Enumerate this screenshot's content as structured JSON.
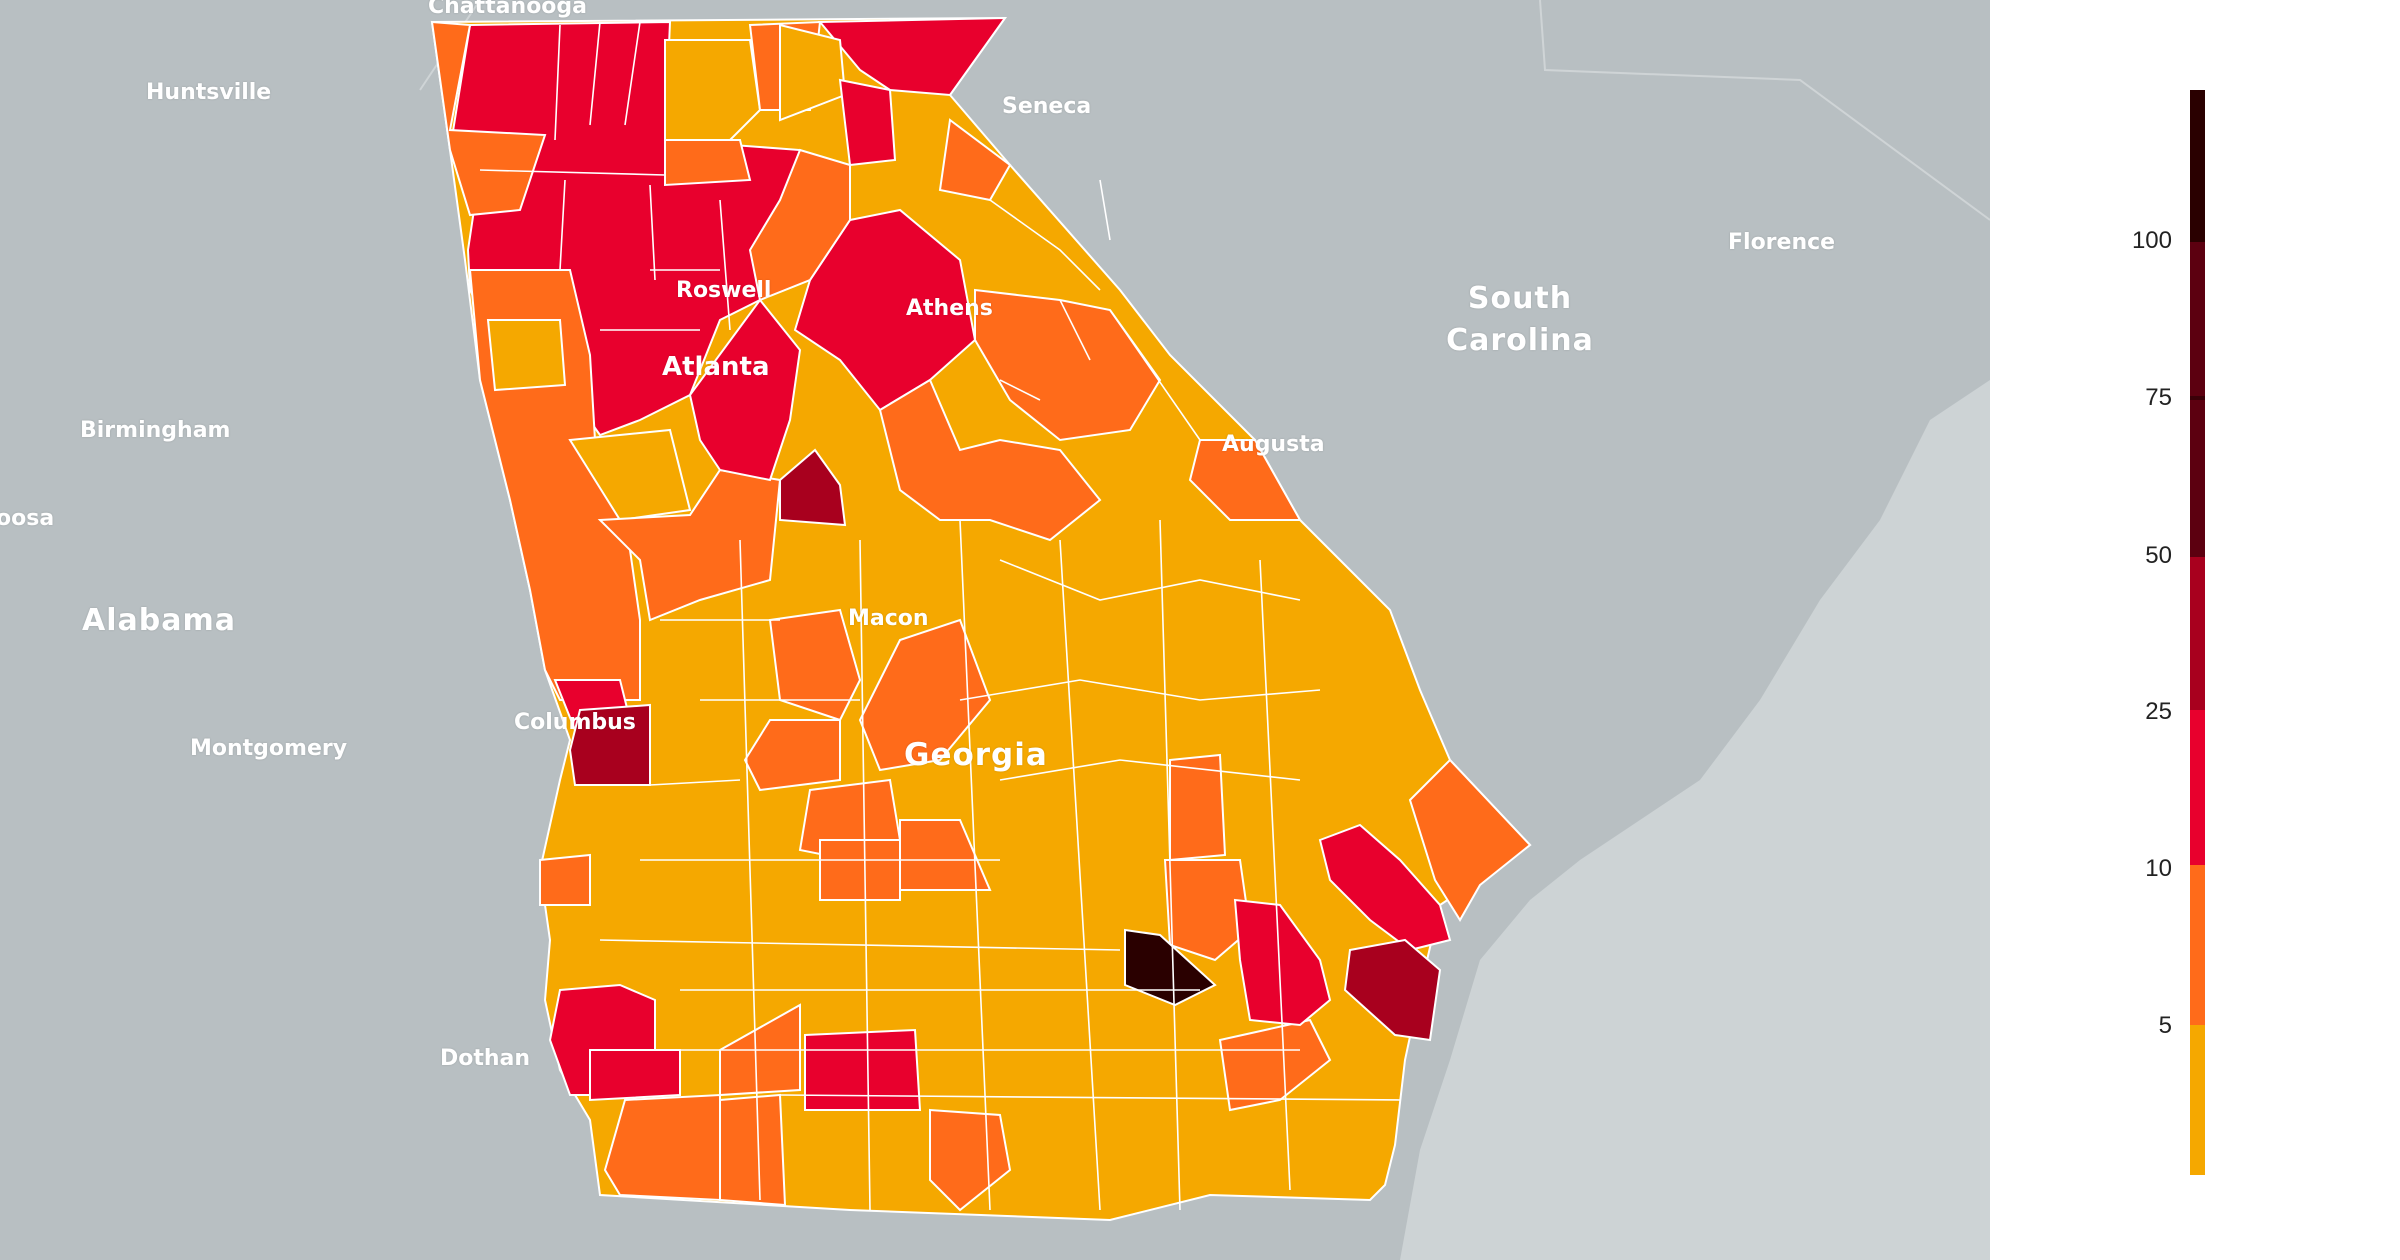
{
  "map": {
    "places": {
      "chattanooga": "Chattanooga",
      "huntsville": "Huntsville",
      "seneca": "Seneca",
      "florence": "Florence",
      "roswell": "Roswell",
      "athens": "Athens",
      "atlanta": "Atlanta",
      "augusta": "Augusta",
      "birmingham": "Birmingham",
      "oosa": "oosa",
      "macon": "Macon",
      "columbus": "Columbus",
      "montgomery": "Montgomery",
      "dothan": "Dothan"
    },
    "regions": {
      "south_carolina_1": "South",
      "south_carolina_2": "Carolina",
      "alabama": "Alabama",
      "georgia": "Georgia"
    },
    "colors": {
      "land": "#b8bfc2",
      "water": "#cdd3d5",
      "low": "#f5a800",
      "mid": "#ff6b1a",
      "high": "#e8002d",
      "very_high": "#a8001e",
      "extreme": "#2a0000"
    }
  },
  "legend": {
    "ticks": [
      "100",
      "75",
      "50",
      "25",
      "10",
      "5"
    ],
    "segments": [
      {
        "range": "75-100+",
        "color": "#2a0000"
      },
      {
        "range": "50-75",
        "color": "#5c0010"
      },
      {
        "range": "25-50",
        "color": "#a8001e"
      },
      {
        "range": "10-25",
        "color": "#e8002d"
      },
      {
        "range": "5-10",
        "color": "#ff6b1a"
      },
      {
        "range": "0-5",
        "color": "#f5a800"
      }
    ]
  }
}
